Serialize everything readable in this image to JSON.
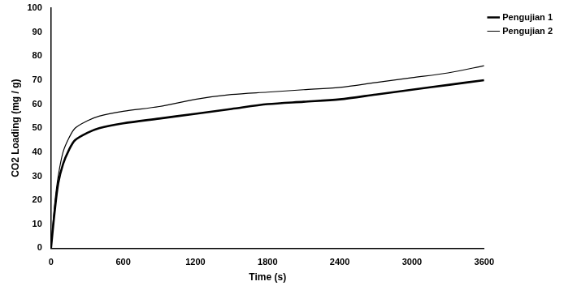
{
  "chart_data": {
    "type": "line",
    "x_label": "Time (s)",
    "y_label": "CO2 Loading (mg / g)",
    "x": [
      0,
      30,
      60,
      100,
      150,
      200,
      300,
      400,
      600,
      900,
      1200,
      1500,
      1800,
      2100,
      2400,
      2700,
      3000,
      3300,
      3600
    ],
    "series": [
      {
        "name": "Pengujian 1",
        "color": "#000000",
        "line_style": "solid",
        "values": [
          0,
          15,
          27,
          35,
          41,
          45,
          48,
          50,
          52,
          54,
          56,
          58,
          60,
          61,
          62,
          64,
          66,
          68,
          70
        ]
      },
      {
        "name": "Pengujian 2",
        "color": "#000000",
        "line_style": "solid",
        "values": [
          0,
          18,
          30,
          40,
          46,
          50,
          53,
          55,
          57,
          59,
          62,
          64,
          65,
          66,
          67,
          69,
          71,
          73,
          76
        ]
      }
    ],
    "xlim": [
      0,
      3600
    ],
    "xticks": [
      0,
      600,
      1200,
      1800,
      2400,
      3000,
      3600
    ],
    "ylim": [
      0,
      100
    ],
    "yticks": [
      0,
      10,
      20,
      30,
      40,
      50,
      60,
      70,
      80,
      90,
      100
    ],
    "grid": false,
    "legend": "upper right"
  }
}
